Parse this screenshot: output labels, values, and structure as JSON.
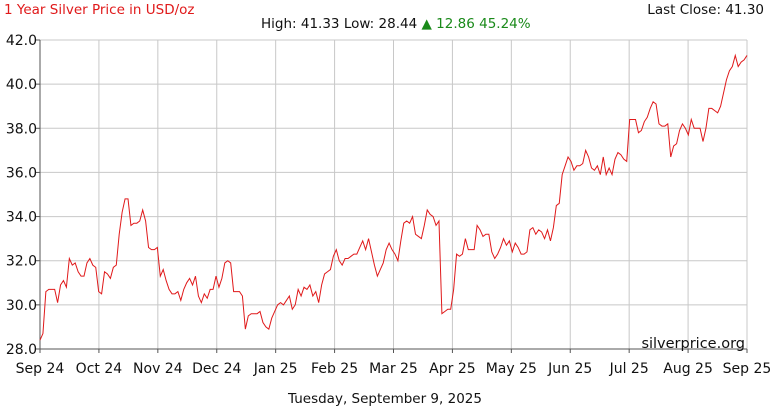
{
  "header": {
    "title": "1 Year Silver Price in USD/oz",
    "last_close_label": "Last Close:",
    "last_close_value": "41.30",
    "high_label": "High:",
    "high_value": "41.33",
    "low_label": "Low:",
    "low_value": "28.44",
    "change_arrow": "▲",
    "change_value": "12.86",
    "change_percent": "45.24%"
  },
  "watermark": "silverprice.org",
  "footer": {
    "date": "Tuesday, September 9, 2025"
  },
  "colors": {
    "title": "#e0191a",
    "line": "#e0191a",
    "grid": "#c8c8c8",
    "up": "#1a8a1a"
  },
  "chart_data": {
    "type": "line",
    "title": "1 Year Silver Price in USD/oz",
    "x_ticks": [
      "Sep 24",
      "Oct 24",
      "Nov 24",
      "Dec 24",
      "Jan 25",
      "Feb 25",
      "Mar 25",
      "Apr 25",
      "May 25",
      "Jun 25",
      "Jul 25",
      "Aug 25",
      "Sep 25"
    ],
    "y_ticks": [
      "42.0",
      "40.0",
      "38.0",
      "36.0",
      "34.0",
      "32.0",
      "30.0",
      "28.0"
    ],
    "ylim": [
      28,
      42
    ],
    "grid": true,
    "series": [
      {
        "values": [
          28.4,
          28.7,
          30.6,
          30.7,
          30.7,
          30.7,
          30.1,
          30.9,
          31.1,
          30.8,
          32.1,
          31.8,
          31.9,
          31.5,
          31.3,
          31.3,
          31.9,
          32.1,
          31.8,
          31.7,
          30.6,
          30.5,
          31.5,
          31.4,
          31.2,
          31.7,
          31.8,
          33.2,
          34.2,
          34.8,
          34.8,
          33.6,
          33.7,
          33.7,
          33.8,
          34.3,
          33.8,
          32.6,
          32.5,
          32.5,
          32.6,
          31.3,
          31.6,
          31.1,
          30.7,
          30.5,
          30.5,
          30.6,
          30.2,
          30.7,
          31.0,
          31.2,
          30.9,
          31.3,
          30.4,
          30.1,
          30.5,
          30.3,
          30.7,
          30.7,
          31.3,
          30.8,
          31.2,
          31.9,
          32.0,
          31.9,
          30.6,
          30.6,
          30.6,
          30.4,
          28.9,
          29.5,
          29.6,
          29.6,
          29.6,
          29.7,
          29.2,
          29.0,
          28.9,
          29.4,
          29.7,
          30.0,
          30.1,
          30.0,
          30.2,
          30.4,
          29.8,
          30.0,
          30.7,
          30.4,
          30.8,
          30.7,
          30.9,
          30.4,
          30.6,
          30.1,
          30.9,
          31.4,
          31.5,
          31.6,
          32.2,
          32.5,
          32.0,
          31.8,
          32.1,
          32.1,
          32.2,
          32.3,
          32.3,
          32.6,
          32.9,
          32.5,
          33.0,
          32.4,
          31.8,
          31.3,
          31.6,
          31.9,
          32.5,
          32.8,
          32.5,
          32.3,
          32.0,
          32.9,
          33.7,
          33.8,
          33.7,
          34.0,
          33.2,
          33.1,
          33.0,
          33.6,
          34.3,
          34.1,
          34.0,
          33.6,
          33.8,
          29.6,
          29.7,
          29.8,
          29.8,
          30.7,
          32.3,
          32.2,
          32.3,
          33.0,
          32.5,
          32.5,
          32.5,
          33.6,
          33.4,
          33.1,
          33.2,
          33.2,
          32.4,
          32.1,
          32.3,
          32.6,
          33.0,
          32.7,
          32.9,
          32.4,
          32.8,
          32.6,
          32.3,
          32.3,
          32.4,
          33.4,
          33.5,
          33.2,
          33.4,
          33.3,
          33.0,
          33.4,
          32.9,
          33.5,
          34.5,
          34.6,
          35.9,
          36.3,
          36.7,
          36.5,
          36.1,
          36.3,
          36.3,
          36.4,
          37.0,
          36.7,
          36.2,
          36.1,
          36.3,
          35.9,
          36.7,
          35.9,
          36.2,
          35.9,
          36.6,
          36.9,
          36.8,
          36.6,
          36.5,
          38.4,
          38.4,
          38.4,
          37.8,
          37.9,
          38.3,
          38.5,
          38.9,
          39.2,
          39.1,
          38.2,
          38.1,
          38.1,
          38.2,
          36.7,
          37.2,
          37.3,
          37.9,
          38.2,
          38.0,
          37.7,
          38.4,
          38.0,
          38.0,
          38.0,
          37.4,
          38.0,
          38.9,
          38.9,
          38.8,
          38.7,
          39.0,
          39.6,
          40.2,
          40.6,
          40.8,
          41.3,
          40.8,
          41.0,
          41.1,
          41.3
        ]
      }
    ]
  }
}
